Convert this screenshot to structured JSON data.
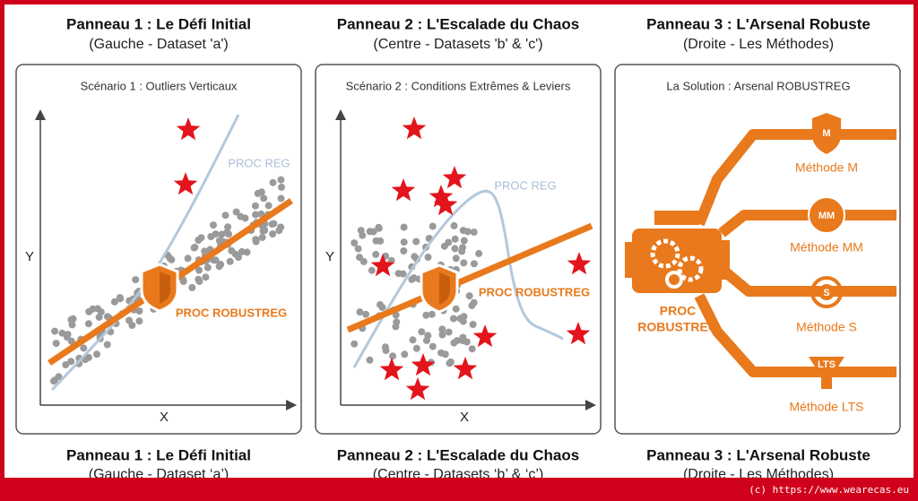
{
  "panels": [
    {
      "title": "Panneau 1 : Le Défi Initial",
      "subtitle": "(Gauche - Dataset 'a')",
      "scenario": "Scénario 1 : Outliers Verticaux",
      "reg_label": "PROC REG",
      "robust_label": "PROC ROBUSTREG",
      "y_axis": "Y",
      "x_axis": "X"
    },
    {
      "title": "Panneau 2 : L'Escalade du Chaos",
      "subtitle": "(Centre - Datasets 'b' & 'c')",
      "scenario": "Scénario 2 : Conditions Extrêmes & Leviers",
      "reg_label": "PROC REG",
      "robust_label": "PROC ROBUSTREG",
      "y_axis": "Y",
      "x_axis": "X"
    },
    {
      "title": "Panneau 3 : L'Arsenal Robuste",
      "subtitle": "(Droite - Les Méthodes)",
      "scenario": "La Solution : Arsenal ROBUSTREG",
      "engine_label": [
        "PROC",
        "ROBUSTREG"
      ],
      "methods": [
        {
          "icon": "M",
          "label": "Méthode M"
        },
        {
          "icon": "MM",
          "label": "Méthode MM"
        },
        {
          "icon": "S",
          "label": "Méthode S"
        },
        {
          "icon": "LTS",
          "label": "Méthode LTS"
        }
      ]
    }
  ],
  "footer_titles": [
    {
      "title": "Panneau 1 : Le Défi Initial",
      "subtitle": "(Gauche - Dataset ‘a’)"
    },
    {
      "title": "Panneau 2 : L'Escalade du Chaos",
      "subtitle": "(Centre - Datasets ‘b’ & ‘c’)"
    },
    {
      "title": "Panneau 3 : L'Arsenal Robuste",
      "subtitle": "(Droite - Les Méthodes)"
    }
  ],
  "copyright": "(c) https://www.wearecas.eu"
}
